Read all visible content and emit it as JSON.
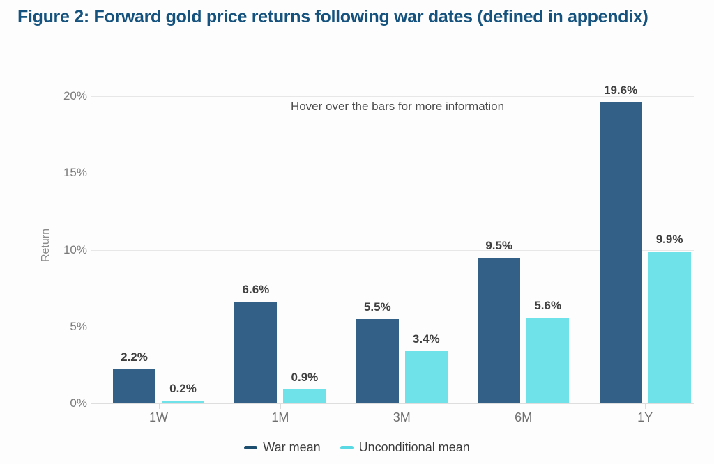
{
  "title": "Figure 2: Forward gold price returns following war dates (defined in appendix)",
  "hover_note": "Hover over the bars for more information",
  "colors": {
    "title_text": "#15537e",
    "war_bar": "#336086",
    "unconditional_bar": "#6fe2e9",
    "war_legend_swatch": "#1c4e70",
    "unconditional_legend_swatch": "#59d9e3",
    "gridline": "#e7e7e7",
    "axis_text": "#7b7b7b",
    "value_label_text": "#3f3f3f"
  },
  "chart_data": {
    "type": "bar",
    "title": "Forward gold price returns following war dates",
    "categories": [
      "1W",
      "1M",
      "3M",
      "6M",
      "1Y"
    ],
    "series": [
      {
        "name": "War mean",
        "values": [
          2.2,
          6.6,
          5.5,
          9.5,
          19.6
        ],
        "value_labels": [
          "2.2%",
          "6.6%",
          "5.5%",
          "9.5%",
          "19.6%"
        ],
        "color": "#336086"
      },
      {
        "name": "Unconditional mean",
        "values": [
          0.2,
          0.9,
          3.4,
          5.6,
          9.9
        ],
        "value_labels": [
          "0.2%",
          "0.9%",
          "3.4%",
          "5.6%",
          "9.9%"
        ],
        "color": "#6fe2e9"
      }
    ],
    "xlabel": "",
    "ylabel": "Return",
    "ylim": [
      0,
      20
    ],
    "yticks": [
      0,
      5,
      10,
      15,
      20
    ],
    "ytick_labels": [
      "0%",
      "5%",
      "10%",
      "15%",
      "20%"
    ],
    "grid": true,
    "legend_position": "bottom",
    "annotation": "Hover over the bars for more information"
  },
  "legend": [
    {
      "label": "War mean",
      "color": "#1c4e70"
    },
    {
      "label": "Unconditional mean",
      "color": "#59d9e3"
    }
  ]
}
